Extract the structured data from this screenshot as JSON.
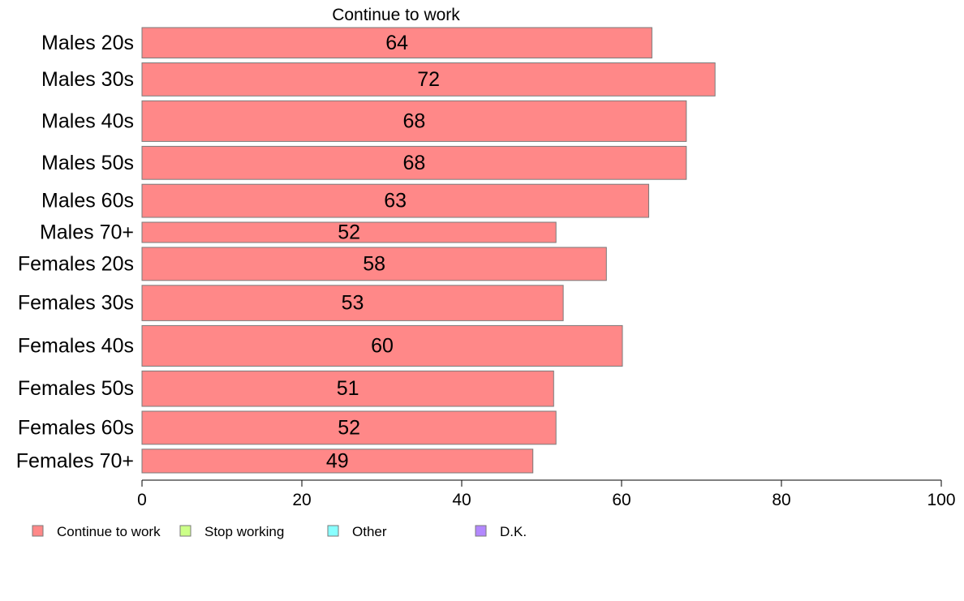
{
  "chart_data": {
    "type": "bar",
    "orientation": "horizontal",
    "title": "Continue to work",
    "categories": [
      "Males 20s",
      "Males 30s",
      "Males 40s",
      "Males 50s",
      "Males 60s",
      "Males 70+",
      "Females 20s",
      "Females 30s",
      "Females 40s",
      "Females 50s",
      "Females 60s",
      "Females 70+"
    ],
    "series": [
      {
        "name": "Continue to work",
        "color": "#ff8888",
        "values": [
          64,
          72,
          68,
          68,
          63,
          52,
          58,
          53,
          60,
          51,
          52,
          49
        ],
        "exact_values": [
          63.8,
          71.7,
          68.1,
          68.1,
          63.4,
          51.8,
          58.1,
          52.7,
          60.1,
          51.5,
          51.8,
          48.9
        ],
        "bar_thickness_share": [
          0.81,
          0.88,
          1.08,
          0.88,
          0.88,
          0.54,
          0.88,
          0.94,
          1.08,
          0.94,
          0.88,
          0.63
        ]
      }
    ],
    "xlim": [
      0,
      100
    ],
    "xticks": [
      0,
      20,
      40,
      60,
      80,
      100
    ],
    "xlabel": "",
    "ylabel": "",
    "grid": false,
    "legend": {
      "position": "bottom-left",
      "entries": [
        {
          "label": "Continue to work",
          "color": "#ff8888"
        },
        {
          "label": "Stop working",
          "color": "#ccff88"
        },
        {
          "label": "Other",
          "color": "#88ffff"
        },
        {
          "label": "D.K.",
          "color": "#b388ff"
        }
      ]
    }
  }
}
